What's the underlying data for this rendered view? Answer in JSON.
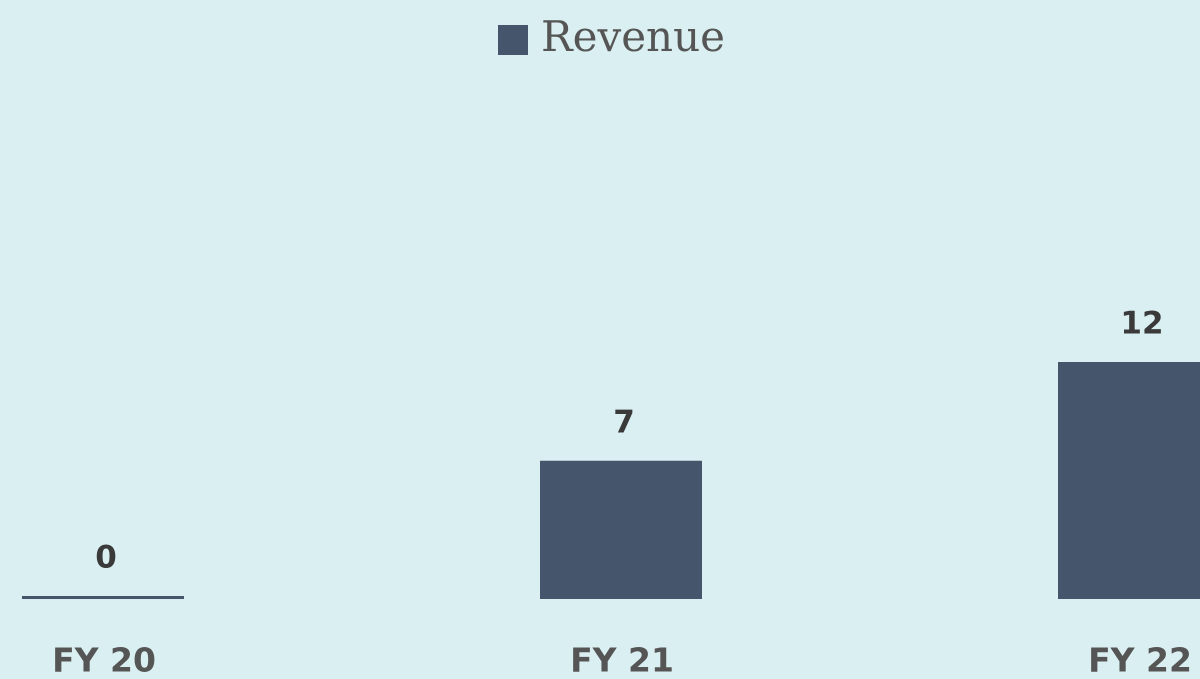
{
  "chart_data": {
    "type": "bar",
    "categories": [
      "FY 20",
      "FY 21",
      "FY 22"
    ],
    "series": [
      {
        "name": "Revenue",
        "color": "#45556b",
        "values": [
          0,
          7,
          12
        ]
      }
    ],
    "ylim": [
      0,
      20
    ],
    "grid": false,
    "legend": "top"
  }
}
